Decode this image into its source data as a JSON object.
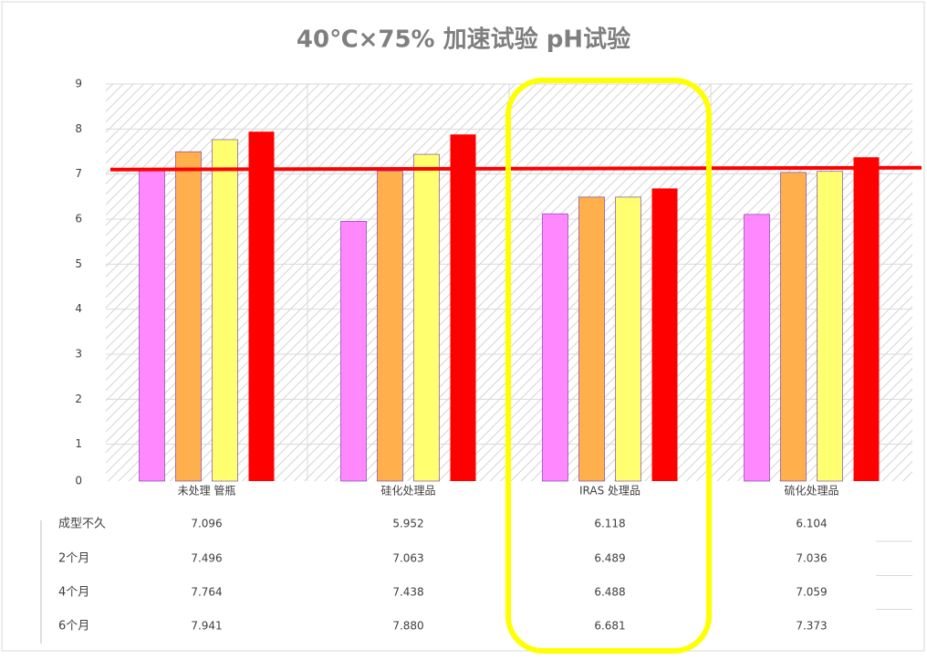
{
  "chart_data": {
    "type": "bar",
    "title": "40℃×75% 加速试验 pH试验",
    "categories": [
      "未处理 管瓶",
      "硅化处理品",
      "IRAS 处理品",
      "硫化处理品"
    ],
    "series": [
      {
        "name": "成型不久",
        "color": "#ff88ff",
        "values": [
          7.096,
          5.952,
          6.118,
          6.104
        ],
        "value_labels": [
          "7.096",
          "5.952",
          "6.118",
          "6.104"
        ]
      },
      {
        "name": "2个月",
        "color": "#ffb04c",
        "values": [
          7.496,
          7.063,
          6.489,
          7.036
        ],
        "value_labels": [
          "7.496",
          "7.063",
          "6.489",
          "7.036"
        ]
      },
      {
        "name": "4个月",
        "color": "#ffff70",
        "values": [
          7.764,
          7.438,
          6.488,
          7.059
        ],
        "value_labels": [
          "7.764",
          "7.438",
          "6.488",
          "7.059"
        ]
      },
      {
        "name": "6个月",
        "color": "#ff0000",
        "values": [
          7.941,
          7.88,
          6.681,
          7.373
        ],
        "value_labels": [
          "7.941",
          "7.880",
          "6.681",
          "7.373"
        ]
      }
    ],
    "reference_line": 7.1,
    "reference_color": "#ff0000",
    "ylim": [
      0,
      9
    ],
    "yticks": [
      0,
      1,
      2,
      3,
      4,
      5,
      6,
      7,
      8,
      9
    ],
    "grid": true
  }
}
